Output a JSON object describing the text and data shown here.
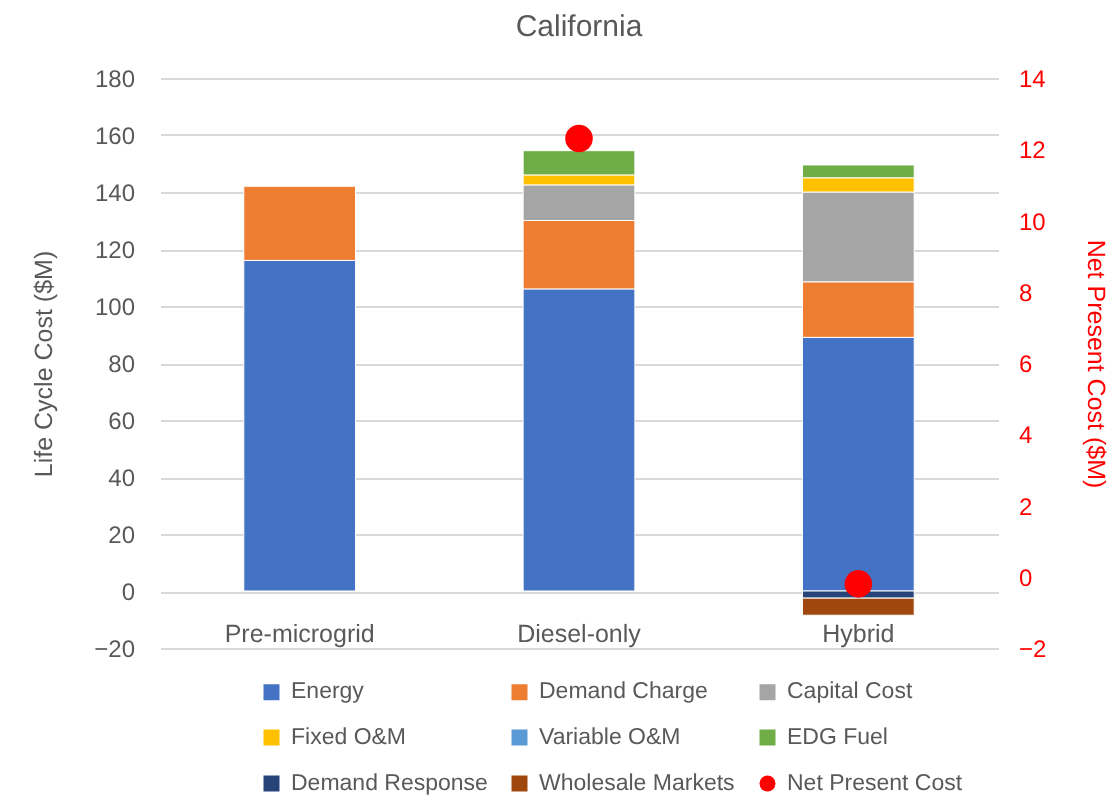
{
  "chart_data": {
    "type": "bar",
    "title": "California",
    "ylabel": "Life Cycle Cost ($M)",
    "y2label": "Net Present Cost ($M)",
    "categories": [
      "Pre-microgrid",
      "Diesel-only",
      "Hybrid"
    ],
    "stacked": true,
    "series": [
      {
        "name": "Energy",
        "color": "#4472c4",
        "values": [
          116,
          106,
          89
        ]
      },
      {
        "name": "Demand Charge",
        "color": "#ed7d31",
        "values": [
          26,
          24,
          19.5
        ]
      },
      {
        "name": "Capital Cost",
        "color": "#a5a5a5",
        "values": [
          null,
          12.5,
          31.5
        ]
      },
      {
        "name": "Fixed O&M",
        "color": "#ffc000",
        "values": [
          null,
          3.5,
          5
        ]
      },
      {
        "name": "Variable O&M",
        "color": "#5b9bd5",
        "values": [
          null,
          null,
          null
        ]
      },
      {
        "name": "EDG Fuel",
        "color": "#70ad47",
        "values": [
          null,
          8.5,
          4.5
        ]
      },
      {
        "name": "Demand Response",
        "color": "#264478",
        "values": [
          null,
          null,
          -2.5
        ]
      },
      {
        "name": "Wholesale Markets",
        "color": "#9e480e",
        "values": [
          null,
          null,
          -6
        ]
      },
      {
        "name": "Net Present Cost",
        "color": "#ff0000",
        "type": "scatter",
        "axis": "y2",
        "values": [
          null,
          12.3,
          -0.2
        ]
      }
    ],
    "ylim": [
      -20,
      180
    ],
    "yticks": [
      -20,
      0,
      20,
      40,
      60,
      80,
      100,
      120,
      140,
      160,
      180
    ],
    "y2lim": [
      -2,
      14
    ],
    "y2ticks": [
      -2,
      0,
      2,
      4,
      6,
      8,
      10,
      12,
      14
    ],
    "grid": "y",
    "legend": "bottom",
    "marker": "circle"
  }
}
